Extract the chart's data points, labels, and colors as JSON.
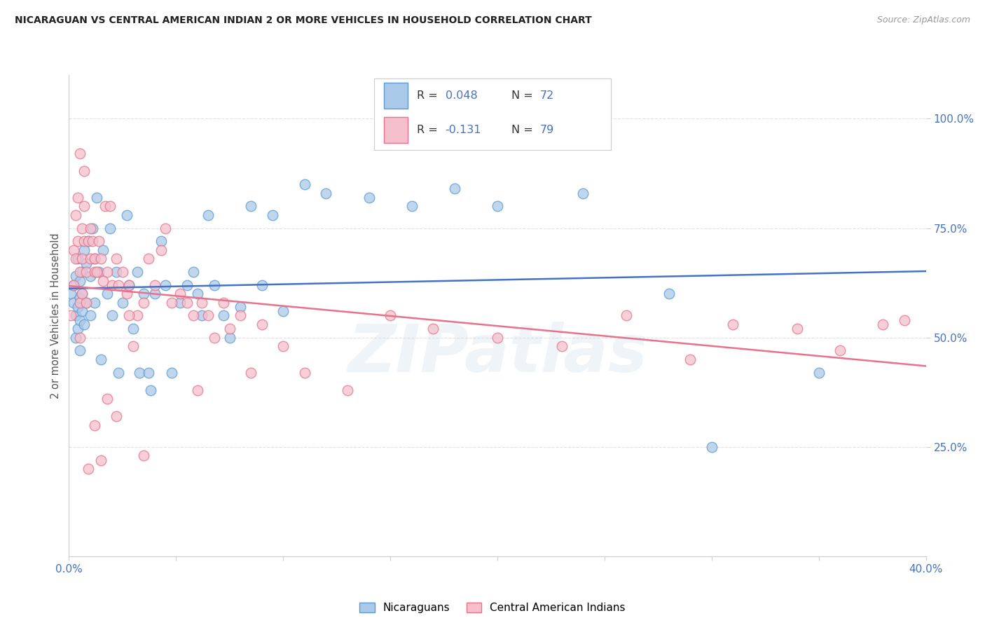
{
  "title": "NICARAGUAN VS CENTRAL AMERICAN INDIAN 2 OR MORE VEHICLES IN HOUSEHOLD CORRELATION CHART",
  "source": "Source: ZipAtlas.com",
  "ylabel": "2 or more Vehicles in Household",
  "xlim": [
    0.0,
    0.4
  ],
  "ylim": [
    0.0,
    1.1
  ],
  "ytick_vals": [
    0.25,
    0.5,
    0.75,
    1.0
  ],
  "ytick_labels": [
    "25.0%",
    "50.0%",
    "75.0%",
    "100.0%"
  ],
  "xtick_vals": [
    0.0,
    0.05,
    0.1,
    0.15,
    0.2,
    0.25,
    0.3,
    0.35,
    0.4
  ],
  "xtick_labels": [
    "0.0%",
    "",
    "",
    "",
    "",
    "",
    "",
    "",
    "40.0%"
  ],
  "blue_R": 0.048,
  "blue_N": 72,
  "pink_R": -0.131,
  "pink_N": 79,
  "blue_scatter_color": "#aac9e8",
  "blue_edge_color": "#5b9bd5",
  "pink_scatter_color": "#f5c0cc",
  "pink_edge_color": "#e8728a",
  "blue_line_color": "#4472c4",
  "pink_line_color": "#e8728a",
  "legend_label_blue": "Nicaraguans",
  "legend_label_pink": "Central American Indians",
  "title_color": "#222222",
  "source_color": "#999999",
  "axis_tick_color": "#4472c4",
  "grid_color": "#e0e0e0",
  "watermark": "ZIPatlas",
  "blue_x": [
    0.001,
    0.002,
    0.002,
    0.003,
    0.003,
    0.003,
    0.004,
    0.004,
    0.004,
    0.005,
    0.005,
    0.005,
    0.005,
    0.006,
    0.006,
    0.006,
    0.007,
    0.007,
    0.008,
    0.008,
    0.009,
    0.01,
    0.01,
    0.011,
    0.012,
    0.012,
    0.013,
    0.014,
    0.015,
    0.016,
    0.018,
    0.019,
    0.02,
    0.022,
    0.023,
    0.025,
    0.027,
    0.028,
    0.03,
    0.032,
    0.033,
    0.035,
    0.037,
    0.038,
    0.04,
    0.043,
    0.045,
    0.048,
    0.052,
    0.055,
    0.058,
    0.06,
    0.062,
    0.065,
    0.068,
    0.072,
    0.075,
    0.08,
    0.085,
    0.09,
    0.095,
    0.1,
    0.11,
    0.12,
    0.14,
    0.16,
    0.18,
    0.2,
    0.24,
    0.28,
    0.3,
    0.35
  ],
  "blue_y": [
    0.6,
    0.62,
    0.58,
    0.64,
    0.55,
    0.5,
    0.68,
    0.57,
    0.52,
    0.63,
    0.59,
    0.54,
    0.47,
    0.65,
    0.6,
    0.56,
    0.7,
    0.53,
    0.67,
    0.58,
    0.72,
    0.64,
    0.55,
    0.75,
    0.68,
    0.58,
    0.82,
    0.65,
    0.45,
    0.7,
    0.6,
    0.75,
    0.55,
    0.65,
    0.42,
    0.58,
    0.78,
    0.62,
    0.52,
    0.65,
    0.42,
    0.6,
    0.42,
    0.38,
    0.6,
    0.72,
    0.62,
    0.42,
    0.58,
    0.62,
    0.65,
    0.6,
    0.55,
    0.78,
    0.62,
    0.55,
    0.5,
    0.57,
    0.8,
    0.62,
    0.78,
    0.56,
    0.85,
    0.83,
    0.82,
    0.8,
    0.84,
    0.8,
    0.83,
    0.6,
    0.25,
    0.42
  ],
  "pink_x": [
    0.001,
    0.002,
    0.002,
    0.003,
    0.003,
    0.004,
    0.004,
    0.005,
    0.005,
    0.005,
    0.006,
    0.006,
    0.006,
    0.007,
    0.007,
    0.008,
    0.008,
    0.009,
    0.01,
    0.01,
    0.011,
    0.012,
    0.012,
    0.013,
    0.014,
    0.015,
    0.016,
    0.017,
    0.018,
    0.019,
    0.02,
    0.022,
    0.023,
    0.025,
    0.027,
    0.028,
    0.03,
    0.032,
    0.035,
    0.037,
    0.04,
    0.043,
    0.045,
    0.048,
    0.052,
    0.055,
    0.058,
    0.06,
    0.062,
    0.065,
    0.068,
    0.072,
    0.075,
    0.08,
    0.085,
    0.09,
    0.1,
    0.11,
    0.13,
    0.15,
    0.17,
    0.2,
    0.23,
    0.26,
    0.29,
    0.31,
    0.34,
    0.36,
    0.38,
    0.39,
    0.005,
    0.007,
    0.009,
    0.012,
    0.015,
    0.018,
    0.022,
    0.028,
    0.035
  ],
  "pink_y": [
    0.55,
    0.7,
    0.62,
    0.78,
    0.68,
    0.82,
    0.72,
    0.65,
    0.58,
    0.5,
    0.75,
    0.68,
    0.6,
    0.8,
    0.72,
    0.65,
    0.58,
    0.72,
    0.68,
    0.75,
    0.72,
    0.68,
    0.65,
    0.65,
    0.72,
    0.68,
    0.63,
    0.8,
    0.65,
    0.8,
    0.62,
    0.68,
    0.62,
    0.65,
    0.6,
    0.62,
    0.48,
    0.55,
    0.58,
    0.68,
    0.62,
    0.7,
    0.75,
    0.58,
    0.6,
    0.58,
    0.55,
    0.38,
    0.58,
    0.55,
    0.5,
    0.58,
    0.52,
    0.55,
    0.42,
    0.53,
    0.48,
    0.42,
    0.38,
    0.55,
    0.52,
    0.5,
    0.48,
    0.55,
    0.45,
    0.53,
    0.52,
    0.47,
    0.53,
    0.54,
    0.92,
    0.88,
    0.2,
    0.3,
    0.22,
    0.36,
    0.32,
    0.55,
    0.23
  ]
}
